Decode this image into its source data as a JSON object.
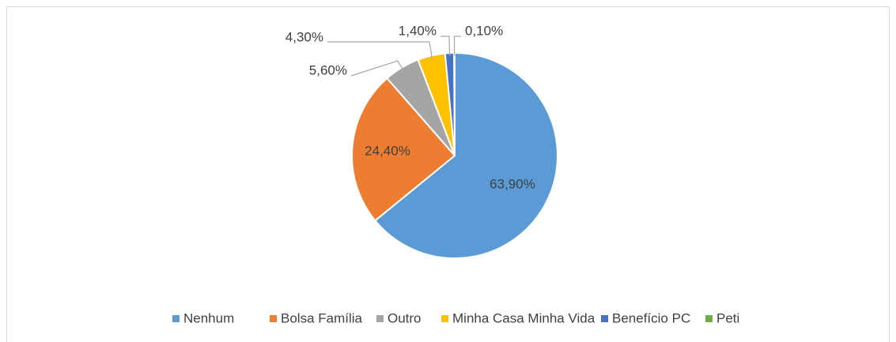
{
  "chart_data": {
    "type": "pie",
    "categories": [
      "Nenhum",
      "Bolsa Família",
      "Outro",
      "Minha Casa Minha Vida",
      "Benefício PC",
      "Peti"
    ],
    "values": [
      63.9,
      24.4,
      5.6,
      4.3,
      1.4,
      0.1
    ],
    "value_labels": [
      "63,90%",
      "24,40%",
      "5,60%",
      "4,30%",
      "1,40%",
      "0,10%"
    ],
    "colors": [
      "#5b9bd5",
      "#ed7d31",
      "#a5a5a5",
      "#ffc000",
      "#4472c4",
      "#70ad47"
    ],
    "legend": "bottom"
  }
}
